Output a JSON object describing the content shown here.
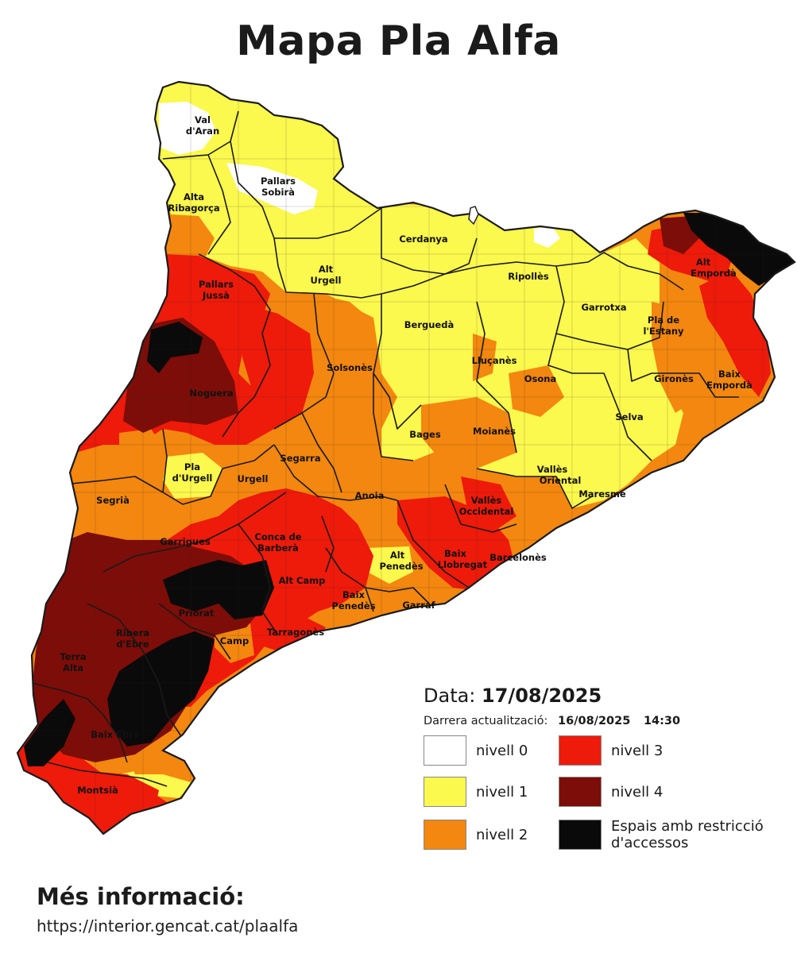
{
  "title": "Mapa Pla Alfa",
  "colors": {
    "nivell_0": "#ffffff",
    "nivell_1": "#fbf84e",
    "nivell_2": "#f3870f",
    "nivell_3": "#ee1a0a",
    "nivell_4": "#7d0d08",
    "restriccio": "#0a0a0a",
    "border": "#1a1a1a"
  },
  "legend": {
    "date_label": "Data:",
    "date_value": "17/08/2025",
    "update_label": "Darrera actualització:",
    "update_date": "16/08/2025",
    "update_time": "14:30",
    "items": [
      {
        "label": "nivell 0",
        "color": "#ffffff"
      },
      {
        "label": "nivell 3",
        "color": "#ee1a0a"
      },
      {
        "label": "nivell 1",
        "color": "#fbf84e"
      },
      {
        "label": "nivell 4",
        "color": "#7d0d08"
      },
      {
        "label": "nivell 2",
        "color": "#f3870f"
      },
      {
        "label": "Espais amb restricció d'accessos",
        "color": "#0a0a0a"
      }
    ]
  },
  "comarques": [
    "Val d'Aran",
    "Pallars Sobirà",
    "Alta Ribagorça",
    "Cerdanya",
    "Alt Urgell",
    "Ripollès",
    "Alt Empordà",
    "Pallars Jussà",
    "Garrotxa",
    "Pla de l'Estany",
    "Berguedà",
    "Solsonès",
    "Lluçanès",
    "Osona",
    "Gironès",
    "Baix Empordà",
    "Noguera",
    "Selva",
    "Bages",
    "Moianès",
    "Segarra",
    "Pla d'Urgell",
    "Urgell",
    "Vallès Oriental",
    "Segrià",
    "Anoia",
    "Maresme",
    "Vallès Occidental",
    "Garrigues",
    "Conca de Barberà",
    "Alt Penedès",
    "Baix Llobregat",
    "Barcelonès",
    "Alt Camp",
    "Baix Penedès",
    "Garraf",
    "Priorat",
    "Ribera d'Ebre",
    "Camp",
    "Tarragonès",
    "Terra Alta",
    "Baix Ebre",
    "Montsià"
  ],
  "more_info": {
    "title": "Més informació:",
    "url": "https://interior.gencat.cat/plaalfa"
  }
}
